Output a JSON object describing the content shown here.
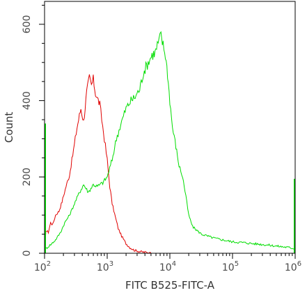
{
  "chart_data": {
    "type": "line",
    "title": "",
    "xlabel": "FITC B525-FITC-A",
    "ylabel": "Count",
    "x_scale": "log",
    "xlim": [
      100,
      1000000
    ],
    "ylim": [
      0,
      660
    ],
    "grid": false,
    "x_ticks": [
      {
        "value": 100,
        "base": "10",
        "exp": "2"
      },
      {
        "value": 1000,
        "base": "10",
        "exp": "3"
      },
      {
        "value": 10000,
        "base": "10",
        "exp": "4"
      },
      {
        "value": 100000,
        "base": "10",
        "exp": "5"
      },
      {
        "value": 1000000,
        "base": "10",
        "exp": "6"
      }
    ],
    "y_ticks": [
      {
        "value": 0,
        "label": "0"
      },
      {
        "value": 200,
        "label": "200"
      },
      {
        "value": 400,
        "label": "400"
      },
      {
        "value": 600,
        "label": "600"
      }
    ],
    "series": [
      {
        "color": "#e00000",
        "x": [
          100,
          105,
          115,
          125,
          135,
          150,
          170,
          190,
          220,
          250,
          290,
          330,
          380,
          420,
          470,
          520,
          560,
          600,
          650,
          700,
          760,
          820,
          900,
          1000,
          1100,
          1200,
          1350,
          1500,
          1700,
          2000,
          2300,
          2700,
          3200,
          3800,
          4500,
          5000
        ],
        "y": [
          0,
          60,
          55,
          80,
          75,
          100,
          110,
          135,
          175,
          205,
          270,
          330,
          380,
          345,
          420,
          460,
          440,
          455,
          420,
          405,
          390,
          350,
          300,
          245,
          175,
          130,
          95,
          65,
          45,
          25,
          15,
          8,
          5,
          3,
          2,
          0
        ]
      },
      {
        "color": "#00dd00",
        "x": [
          100,
          110,
          130,
          150,
          180,
          210,
          250,
          300,
          350,
          420,
          500,
          600,
          700,
          850,
          1000,
          1200,
          1400,
          1700,
          2000,
          2400,
          2800,
          3300,
          3800,
          4500,
          5200,
          5800,
          6500,
          7200,
          7800,
          8500,
          9200,
          10000,
          11000,
          12500,
          14000,
          16000,
          18000,
          20000,
          23000,
          27000,
          32000,
          40000,
          50000,
          70000,
          100000,
          150000,
          220000,
          350000,
          550000,
          800000,
          1000000
        ],
        "y": [
          10,
          15,
          25,
          35,
          55,
          80,
          100,
          130,
          155,
          180,
          160,
          180,
          175,
          185,
          200,
          245,
          300,
          345,
          380,
          400,
          410,
          430,
          475,
          500,
          520,
          525,
          550,
          570,
          545,
          520,
          470,
          400,
          330,
          280,
          230,
          200,
          150,
          100,
          70,
          60,
          50,
          45,
          40,
          35,
          30,
          28,
          25,
          22,
          18,
          15,
          12
        ]
      }
    ]
  }
}
